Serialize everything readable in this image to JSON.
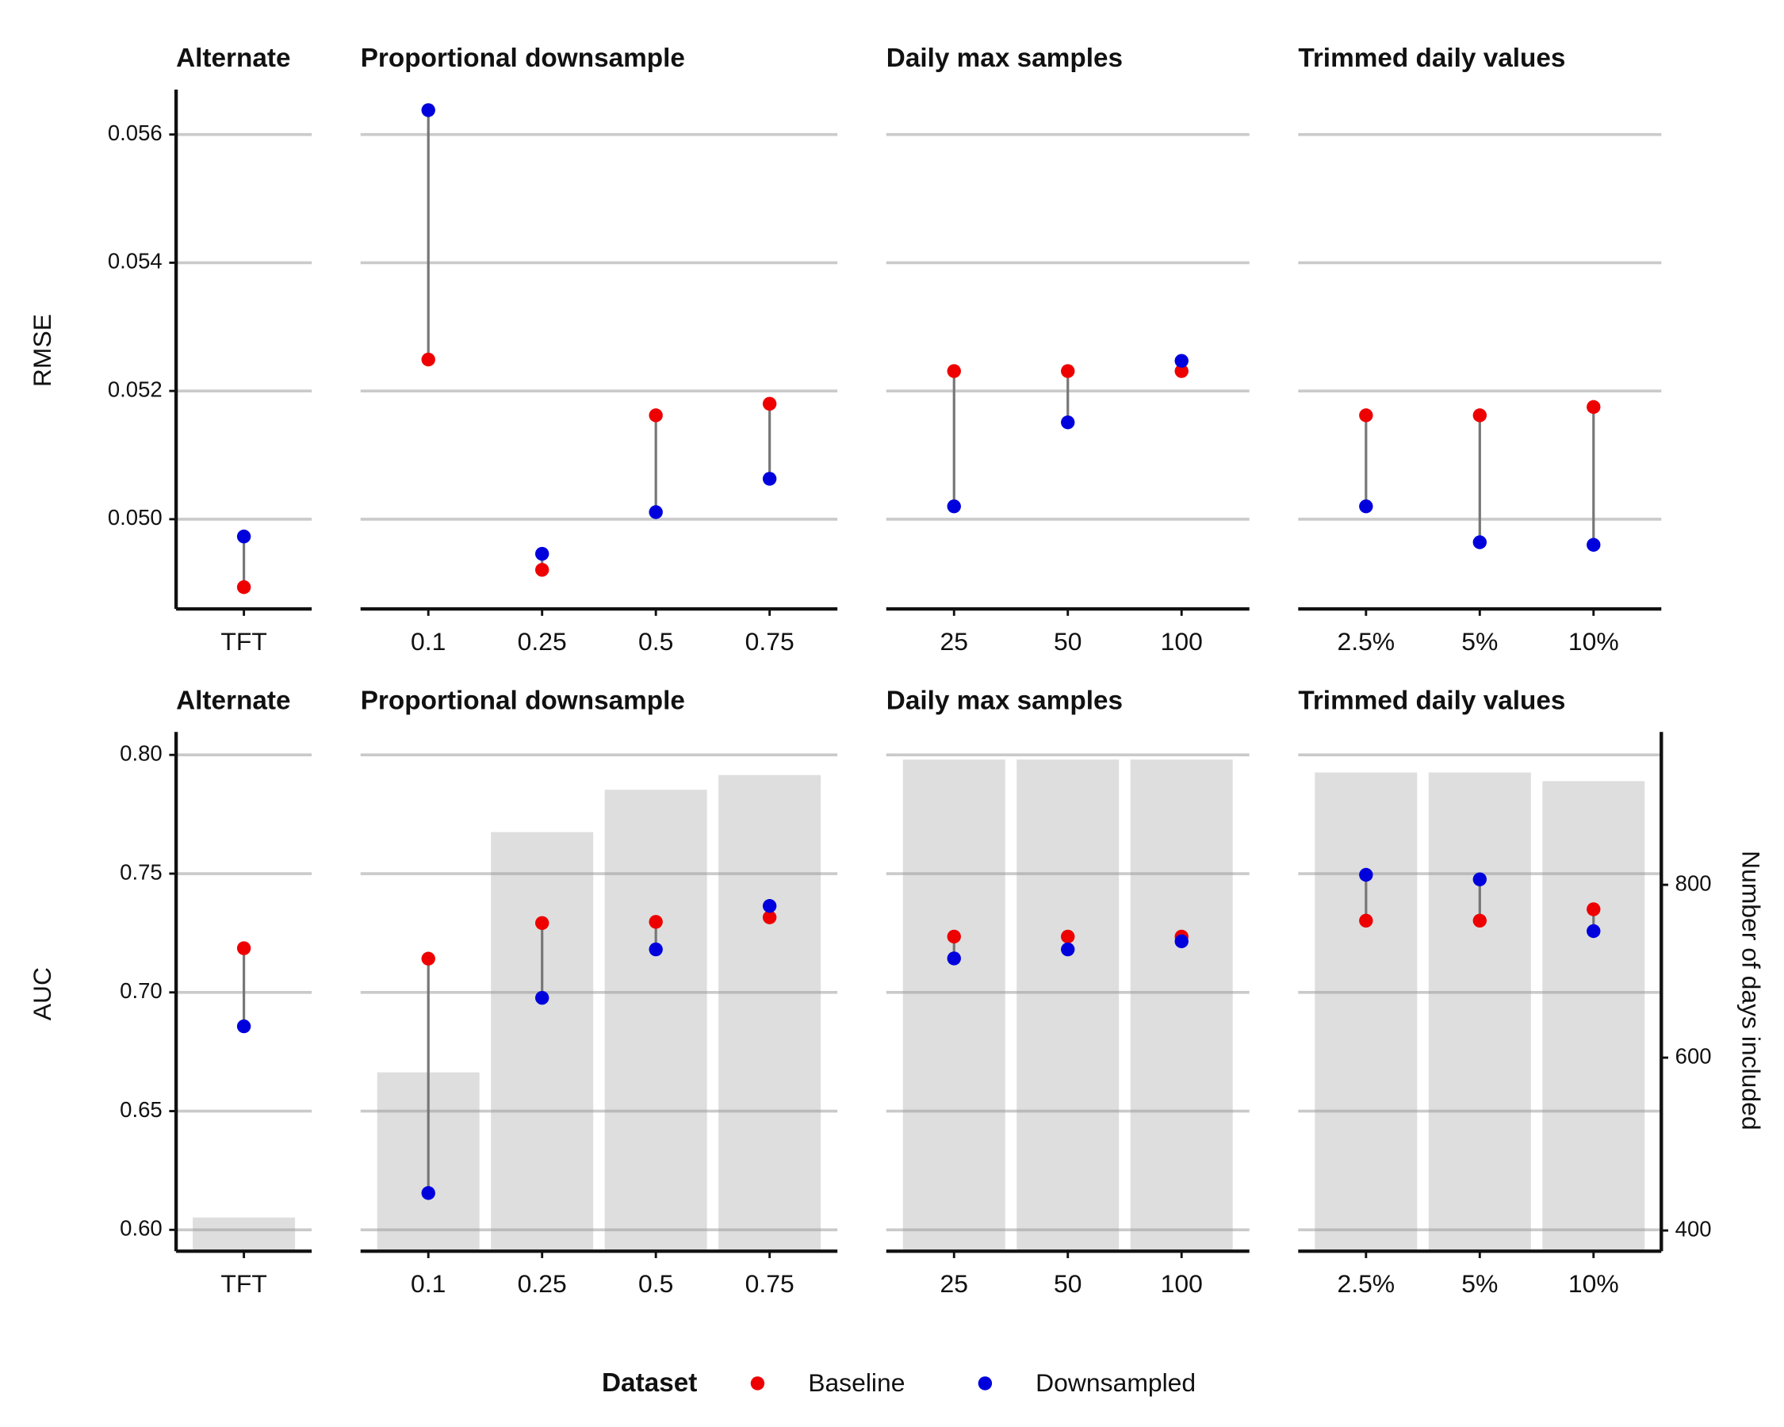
{
  "chart_data": [
    {
      "type": "dumbbell",
      "ylabel": "RMSE",
      "ylim": [
        0.0486,
        0.0567
      ],
      "yticks": [
        {
          "value": 0.05,
          "label": "0.050"
        },
        0.052,
        0.054,
        0.056
      ],
      "grid": true,
      "facets": [
        {
          "title": "Alternate",
          "categories": [
            "TFT"
          ],
          "baseline": [
            0.04894
          ],
          "downsampled": [
            0.04973
          ]
        },
        {
          "title": "Proportional downsample",
          "categories": [
            "0.1",
            "0.25",
            "0.5",
            "0.75"
          ],
          "baseline": [
            0.05249,
            0.04921,
            0.05162,
            0.0518
          ],
          "downsampled": [
            0.05638,
            0.04946,
            0.05011,
            0.05063
          ]
        },
        {
          "title": "Daily max samples",
          "categories": [
            "25",
            "50",
            "100"
          ],
          "baseline": [
            0.05231,
            0.05231,
            0.05231
          ],
          "downsampled": [
            0.0502,
            0.05151,
            0.05247
          ]
        },
        {
          "title": "Trimmed daily values",
          "categories": [
            "2.5%",
            "5%",
            "10%"
          ],
          "baseline": [
            0.05162,
            0.05162,
            0.05175
          ],
          "downsampled": [
            0.0502,
            0.04964,
            0.0496
          ]
        }
      ]
    },
    {
      "type": "dumbbell",
      "ylabel": "AUC",
      "y2label": "Number of days included",
      "ylim": [
        0.591,
        0.8097
      ],
      "yticks": [
        {
          "value": 0.6,
          "label": "0.60"
        },
        0.65,
        {
          "value": 0.7,
          "label": "0.70"
        },
        0.75,
        {
          "value": 0.8,
          "label": "0.80"
        }
      ],
      "y2lim": [
        376,
        977
      ],
      "y2ticks": [
        400,
        600,
        800
      ],
      "grid": true,
      "bar_color": "#dedede",
      "facets": [
        {
          "title": "Alternate",
          "categories": [
            "TFT"
          ],
          "baseline": [
            0.7186
          ],
          "downsampled": [
            0.6857
          ],
          "bars": [
            415
          ]
        },
        {
          "title": "Proportional downsample",
          "categories": [
            "0.1",
            "0.25",
            "0.5",
            "0.75"
          ],
          "baseline": [
            0.7142,
            0.7292,
            0.7297,
            0.7316
          ],
          "downsampled": [
            0.6155,
            0.6977,
            0.7181,
            0.7364
          ],
          "bars": [
            583,
            861,
            910,
            927
          ]
        },
        {
          "title": "Daily max samples",
          "categories": [
            "25",
            "50",
            "100"
          ],
          "baseline": [
            0.7235,
            0.7235,
            0.7235
          ],
          "downsampled": [
            0.7143,
            0.7181,
            0.7215
          ],
          "bars": [
            945,
            945,
            945
          ]
        },
        {
          "title": "Trimmed daily values",
          "categories": [
            "2.5%",
            "5%",
            "10%"
          ],
          "baseline": [
            0.7302,
            0.7302,
            0.735
          ],
          "downsampled": [
            0.7495,
            0.7476,
            0.7258
          ],
          "bars": [
            930,
            930,
            920
          ]
        }
      ]
    }
  ],
  "legend": {
    "title": "Dataset",
    "series": [
      {
        "name": "Baseline",
        "color": "#ee0000"
      },
      {
        "name": "Downsampled",
        "color": "#0000dd"
      }
    ]
  }
}
